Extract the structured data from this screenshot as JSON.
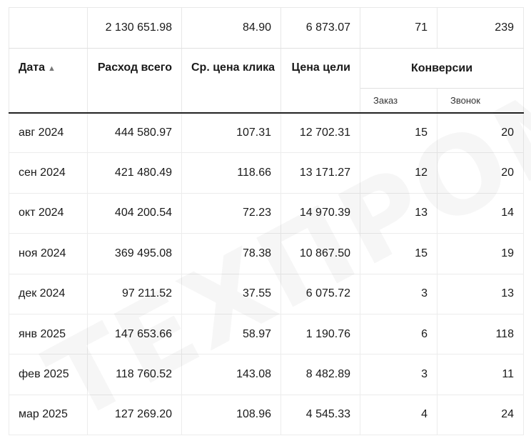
{
  "watermark": "ТЕХПРОМО",
  "totals": {
    "spend": "2 130 651.98",
    "cpc": "84.90",
    "goal_price": "6 873.07",
    "orders": "71",
    "calls": "239"
  },
  "headers": {
    "date": "Дата",
    "sort_arrow": "▲",
    "spend": "Расход всего",
    "cpc": "Ср. цена клика",
    "goal_price": "Цена цели",
    "conversions": "Конверсии",
    "orders": "Заказ",
    "calls": "Звонок"
  },
  "rows": [
    {
      "date": "авг 2024",
      "spend": "444 580.97",
      "cpc": "107.31",
      "goal_price": "12 702.31",
      "orders": "15",
      "calls": "20"
    },
    {
      "date": "сен 2024",
      "spend": "421 480.49",
      "cpc": "118.66",
      "goal_price": "13 171.27",
      "orders": "12",
      "calls": "20"
    },
    {
      "date": "окт 2024",
      "spend": "404 200.54",
      "cpc": "72.23",
      "goal_price": "14 970.39",
      "orders": "13",
      "calls": "14"
    },
    {
      "date": "ноя 2024",
      "spend": "369 495.08",
      "cpc": "78.38",
      "goal_price": "10 867.50",
      "orders": "15",
      "calls": "19"
    },
    {
      "date": "дек 2024",
      "spend": "97 211.52",
      "cpc": "37.55",
      "goal_price": "6 075.72",
      "orders": "3",
      "calls": "13"
    },
    {
      "date": "янв 2025",
      "spend": "147 653.66",
      "cpc": "58.97",
      "goal_price": "1 190.76",
      "orders": "6",
      "calls": "118"
    },
    {
      "date": "фев 2025",
      "spend": "118 760.52",
      "cpc": "143.08",
      "goal_price": "8 482.89",
      "orders": "3",
      "calls": "11"
    },
    {
      "date": "мар 2025",
      "spend": "127 269.20",
      "cpc": "108.96",
      "goal_price": "4 545.33",
      "orders": "4",
      "calls": "24"
    }
  ]
}
